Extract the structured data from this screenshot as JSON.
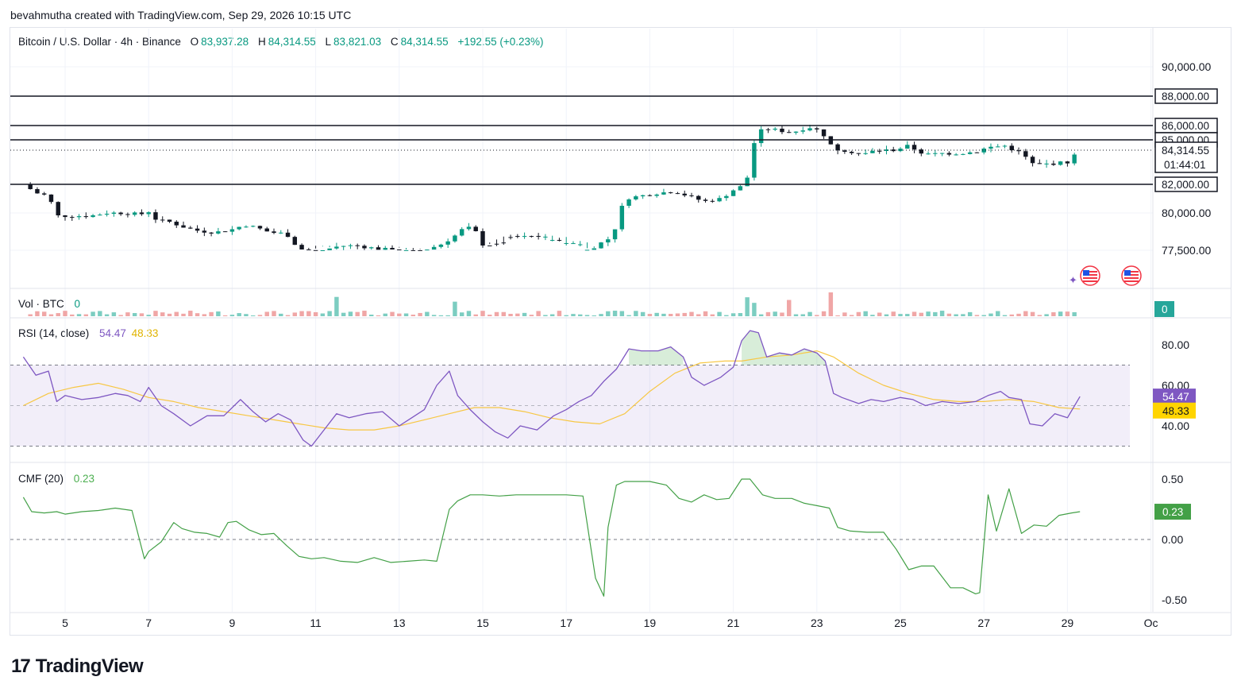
{
  "header": {
    "text": "bevahmutha created with TradingView.com, Sep 29, 2026 10:15 UTC"
  },
  "legend": {
    "symbol": "Bitcoin / U.S. Dollar · 4h · Binance",
    "o_label": "O",
    "o_value": "83,937.28",
    "h_label": "H",
    "h_value": "84,314.55",
    "l_label": "L",
    "l_value": "83,821.03",
    "c_label": "C",
    "c_value": "84,314.55",
    "change": "+192.55 (+0.23%)"
  },
  "vol_legend": {
    "label": "Vol · BTC",
    "value": "0",
    "badge": "0"
  },
  "rsi_legend": {
    "label": "RSI (14, close)",
    "value1": "54.47",
    "value2": "48.33"
  },
  "cmf_legend": {
    "label": "CMF (20)",
    "value": "0.23",
    "badge": "0.23"
  },
  "brand": {
    "name": "TradingView",
    "mark": "17"
  },
  "colors": {
    "up": "#089981",
    "down": "#131722",
    "rsi": "#7e57c2",
    "rsi_ma": "#f7c744",
    "cmf": "#43a047",
    "vol_up": "#7ccdc1",
    "vol_down": "#f0a6a6"
  },
  "chart_data": [
    {
      "type": "candlestick",
      "title": "Bitcoin / U.S. Dollar · 4h · Binance",
      "x_ticks": [
        "5",
        "7",
        "9",
        "11",
        "13",
        "15",
        "17",
        "19",
        "21",
        "23",
        "25",
        "27",
        "29",
        "Oc"
      ],
      "y_ticks": [
        "90,000.00",
        "80,000.00",
        "77,500.00"
      ],
      "ylim": [
        76000,
        91500
      ],
      "levels": [
        {
          "value": 88000,
          "label": "88,000.00"
        },
        {
          "value": 86000,
          "label": "86,000.00"
        },
        {
          "value": 85000,
          "label": "85,000.00"
        },
        {
          "value": 82000,
          "label": "82,000.00"
        }
      ],
      "last_price": {
        "value": 84314.55,
        "label": "84,314.55",
        "countdown": "01:44:01"
      },
      "close_path": [
        [
          4.0,
          82000
        ],
        [
          4.3,
          81400
        ],
        [
          4.6,
          81200
        ],
        [
          4.8,
          79800
        ],
        [
          5.0,
          79800
        ],
        [
          5.6,
          79800
        ],
        [
          6.0,
          80000
        ],
        [
          6.4,
          80000
        ],
        [
          6.8,
          79900
        ],
        [
          7.0,
          80100
        ],
        [
          7.2,
          79500
        ],
        [
          7.5,
          79400
        ],
        [
          7.9,
          79000
        ],
        [
          8.2,
          78800
        ],
        [
          8.6,
          78700
        ],
        [
          9.0,
          78900
        ],
        [
          9.3,
          79200
        ],
        [
          9.6,
          79000
        ],
        [
          9.9,
          78700
        ],
        [
          10.3,
          78600
        ],
        [
          10.6,
          77600
        ],
        [
          11.0,
          77400
        ],
        [
          11.3,
          77600
        ],
        [
          11.6,
          77800
        ],
        [
          12.0,
          77800
        ],
        [
          12.5,
          77600
        ],
        [
          12.9,
          77500
        ],
        [
          13.3,
          77400
        ],
        [
          13.7,
          77600
        ],
        [
          14.0,
          77900
        ],
        [
          14.3,
          78400
        ],
        [
          14.6,
          79100
        ],
        [
          14.9,
          78600
        ],
        [
          15.1,
          77200
        ],
        [
          15.4,
          76800
        ],
        [
          15.7,
          76400
        ],
        [
          16.1,
          76500
        ],
        [
          16.5,
          76600
        ],
        [
          16.9,
          76900
        ],
        [
          17.3,
          77100
        ],
        [
          17.7,
          77800
        ],
        [
          18.1,
          78400
        ],
        [
          18.4,
          81000
        ],
        [
          18.8,
          81200
        ],
        [
          19.2,
          81400
        ],
        [
          19.6,
          81500
        ],
        [
          20.0,
          81100
        ],
        [
          20.3,
          80800
        ],
        [
          20.7,
          81000
        ],
        [
          21.0,
          81600
        ],
        [
          21.3,
          82000
        ],
        [
          21.5,
          84800
        ],
        [
          21.7,
          85800
        ],
        [
          22.0,
          85700
        ],
        [
          22.4,
          85500
        ],
        [
          22.8,
          85900
        ],
        [
          23.1,
          85600
        ],
        [
          23.4,
          84400
        ],
        [
          23.7,
          84300
        ],
        [
          24.1,
          84000
        ],
        [
          24.4,
          84300
        ],
        [
          24.8,
          84300
        ],
        [
          25.2,
          84600
        ],
        [
          25.6,
          84000
        ],
        [
          26.0,
          84100
        ],
        [
          26.4,
          84100
        ],
        [
          26.8,
          84200
        ],
        [
          27.1,
          84500
        ],
        [
          27.5,
          84600
        ],
        [
          27.9,
          84100
        ],
        [
          28.2,
          83300
        ],
        [
          28.6,
          83400
        ],
        [
          29.0,
          83500
        ],
        [
          29.3,
          84314.55
        ]
      ]
    },
    {
      "type": "bar",
      "title": "Vol · BTC",
      "note": "volume bars, low amplitude; spikes near 11.5, 14.3, 21.3, 22.3, 23.4"
    },
    {
      "type": "line",
      "title": "RSI (14, close)",
      "y_ticks": [
        "80.00",
        "60.00",
        "40.00"
      ],
      "ylim": [
        25,
        90
      ],
      "band": [
        30,
        70
      ],
      "midline": 50,
      "current": {
        "rsi": 54.47,
        "ma": 48.33
      },
      "series": [
        {
          "name": "RSI",
          "x": [
            4.0,
            4.3,
            4.6,
            4.8,
            5.0,
            5.4,
            5.8,
            6.2,
            6.5,
            6.8,
            7.0,
            7.3,
            7.6,
            8.0,
            8.4,
            8.8,
            9.2,
            9.5,
            9.8,
            10.1,
            10.4,
            10.7,
            10.9,
            11.2,
            11.5,
            11.8,
            12.2,
            12.6,
            13.0,
            13.3,
            13.6,
            13.9,
            14.2,
            14.4,
            14.7,
            15.0,
            15.3,
            15.6,
            15.9,
            16.3,
            16.7,
            17.0,
            17.3,
            17.6,
            17.9,
            18.2,
            18.5,
            18.8,
            19.2,
            19.5,
            19.8,
            20.0,
            20.3,
            20.7,
            21.0,
            21.2,
            21.4,
            21.6,
            21.8,
            22.1,
            22.4,
            22.7,
            23.0,
            23.2,
            23.4,
            23.6,
            24.0,
            24.3,
            24.6,
            25.0,
            25.3,
            25.6,
            26.0,
            26.4,
            26.8,
            27.1,
            27.4,
            27.6,
            27.9,
            28.1,
            28.4,
            28.7,
            29.0,
            29.3
          ],
          "y": [
            74,
            65,
            67,
            52,
            55,
            53,
            54,
            56,
            55,
            52,
            59,
            50,
            46,
            40,
            45,
            45,
            53,
            47,
            42,
            46,
            43,
            33,
            30,
            38,
            46,
            44,
            46,
            47,
            40,
            44,
            48,
            60,
            67,
            55,
            48,
            42,
            37,
            34,
            40,
            38,
            45,
            48,
            52,
            55,
            62,
            68,
            78,
            77,
            77,
            79,
            74,
            64,
            60,
            64,
            69,
            82,
            87,
            86,
            74,
            76,
            75,
            78,
            76,
            72,
            56,
            54,
            51,
            53,
            52,
            54,
            53,
            50,
            52,
            51,
            52,
            55,
            57,
            54,
            53,
            41,
            40,
            46,
            44,
            54.47
          ]
        },
        {
          "name": "RSI-based MA",
          "x": [
            4.0,
            4.6,
            5.2,
            5.8,
            6.4,
            7.0,
            7.6,
            8.2,
            8.8,
            9.4,
            10.0,
            10.6,
            11.2,
            11.8,
            12.4,
            13.0,
            13.6,
            14.2,
            14.8,
            15.4,
            16.0,
            16.6,
            17.2,
            17.8,
            18.4,
            19.0,
            19.6,
            20.2,
            20.8,
            21.2,
            21.8,
            22.4,
            23.0,
            23.4,
            24.0,
            24.6,
            25.2,
            25.8,
            26.4,
            27.0,
            27.6,
            28.2,
            28.8,
            29.3
          ],
          "y": [
            50,
            56,
            59,
            61,
            58,
            54,
            52,
            49,
            47,
            45,
            43,
            41,
            39,
            38,
            38,
            40,
            43,
            46,
            49,
            49,
            47,
            44,
            42,
            41,
            46,
            57,
            66,
            71,
            72,
            72,
            74,
            75,
            77,
            74,
            66,
            60,
            56,
            53,
            52,
            52,
            53,
            52,
            49,
            48.33
          ]
        }
      ]
    },
    {
      "type": "line",
      "title": "CMF (20)",
      "y_ticks": [
        "0.50",
        "0.00",
        "-0.50"
      ],
      "ylim": [
        -0.62,
        0.62
      ],
      "series": [
        {
          "name": "CMF",
          "x": [
            4.0,
            4.2,
            4.5,
            4.8,
            5.0,
            5.4,
            5.8,
            6.2,
            6.6,
            6.9,
            7.0,
            7.3,
            7.6,
            7.8,
            8.1,
            8.4,
            8.7,
            8.9,
            9.1,
            9.4,
            9.7,
            10.0,
            10.3,
            10.6,
            10.9,
            11.2,
            11.6,
            12.0,
            12.4,
            12.8,
            13.2,
            13.6,
            13.9,
            14.2,
            14.4,
            14.7,
            15.0,
            15.4,
            15.8,
            16.2,
            16.7,
            17.0,
            17.4,
            17.7,
            17.9,
            18.0,
            18.2,
            18.4,
            18.6,
            19.0,
            19.4,
            19.7,
            20.0,
            20.3,
            20.6,
            20.9,
            21.2,
            21.4,
            21.7,
            22.0,
            22.4,
            22.7,
            23.0,
            23.3,
            23.5,
            23.8,
            24.2,
            24.6,
            24.9,
            25.2,
            25.5,
            25.8,
            26.2,
            26.5,
            26.8,
            26.9,
            27.1,
            27.3,
            27.6,
            27.9,
            28.2,
            28.5,
            28.8,
            29.1,
            29.3
          ],
          "y": [
            0.35,
            0.23,
            0.22,
            0.23,
            0.21,
            0.23,
            0.24,
            0.26,
            0.24,
            -0.16,
            -0.1,
            -0.02,
            0.14,
            0.09,
            0.06,
            0.05,
            0.02,
            0.14,
            0.15,
            0.08,
            0.04,
            0.05,
            -0.05,
            -0.14,
            -0.16,
            -0.15,
            -0.18,
            -0.19,
            -0.15,
            -0.19,
            -0.18,
            -0.17,
            -0.18,
            0.25,
            0.32,
            0.37,
            0.37,
            0.36,
            0.37,
            0.37,
            0.37,
            0.37,
            0.36,
            -0.32,
            -0.47,
            0.1,
            0.45,
            0.48,
            0.48,
            0.48,
            0.45,
            0.34,
            0.31,
            0.37,
            0.33,
            0.34,
            0.5,
            0.5,
            0.37,
            0.34,
            0.34,
            0.3,
            0.28,
            0.26,
            0.1,
            0.07,
            0.06,
            0.06,
            -0.08,
            -0.25,
            -0.22,
            -0.22,
            -0.4,
            -0.4,
            -0.45,
            -0.44,
            0.37,
            0.07,
            0.42,
            0.05,
            0.12,
            0.11,
            0.2,
            0.22,
            0.23
          ]
        }
      ]
    }
  ]
}
